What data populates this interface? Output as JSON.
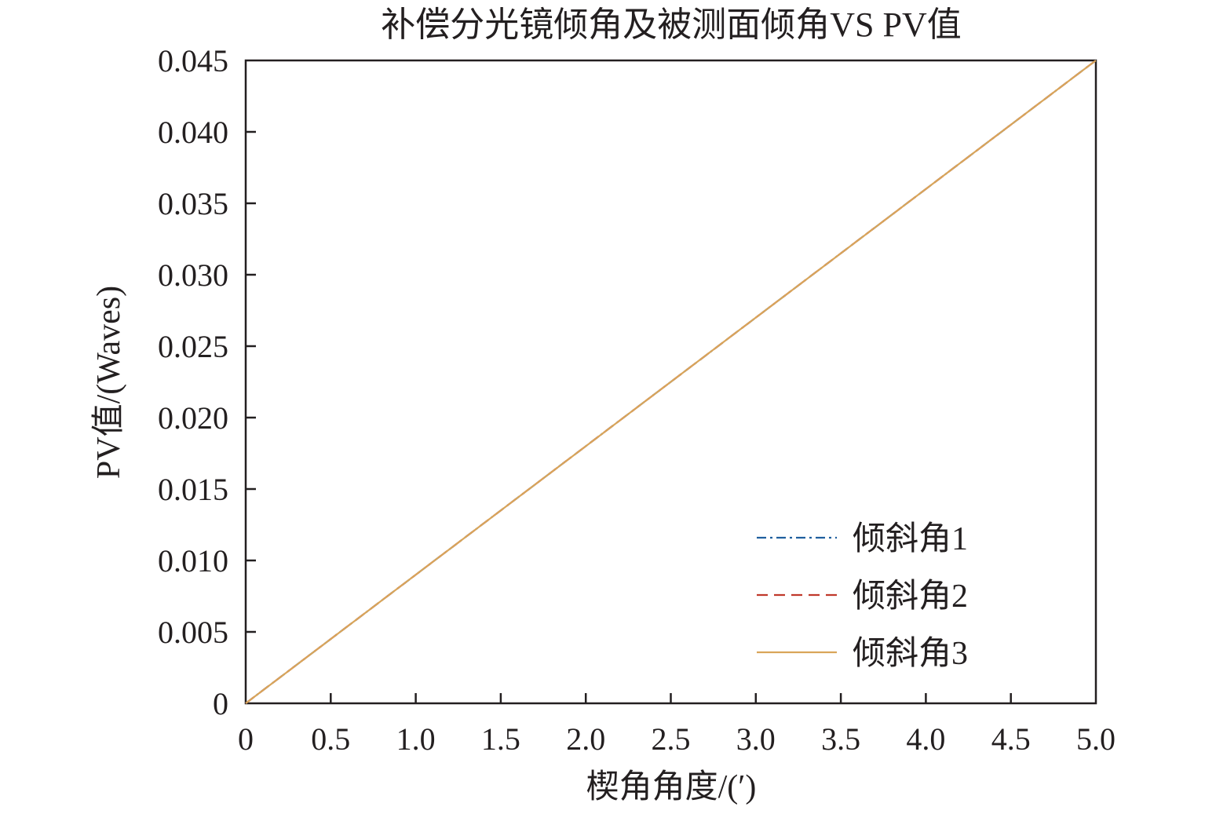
{
  "chart_data": {
    "type": "line",
    "title": "补偿分光镜倾角及被测面倾角VS PV值",
    "xlabel": "楔角角度/(′)",
    "ylabel": "PV值/(Waves)",
    "xlim": [
      0,
      5.0
    ],
    "ylim": [
      0,
      0.045
    ],
    "x_ticks": [
      "0",
      "0.5",
      "1.0",
      "1.5",
      "2.0",
      "2.5",
      "3.0",
      "3.5",
      "4.0",
      "4.5",
      "5.0"
    ],
    "y_ticks": [
      "0",
      "0.005",
      "0.010",
      "0.015",
      "0.020",
      "0.025",
      "0.030",
      "0.035",
      "0.040",
      "0.045"
    ],
    "grid": false,
    "legend_position": "lower-right",
    "series": [
      {
        "name": "倾斜角1",
        "color": "#1f5f9e",
        "line_style": "dash-dot",
        "x": [
          0,
          5.0
        ],
        "y": [
          0,
          0.045
        ]
      },
      {
        "name": "倾斜角2",
        "color": "#c0392b",
        "line_style": "dashed",
        "x": [
          0,
          5.0
        ],
        "y": [
          0,
          0.045
        ]
      },
      {
        "name": "倾斜角3",
        "color": "#d9a55a",
        "line_style": "solid",
        "x": [
          0,
          5.0
        ],
        "y": [
          0,
          0.045
        ]
      }
    ]
  }
}
